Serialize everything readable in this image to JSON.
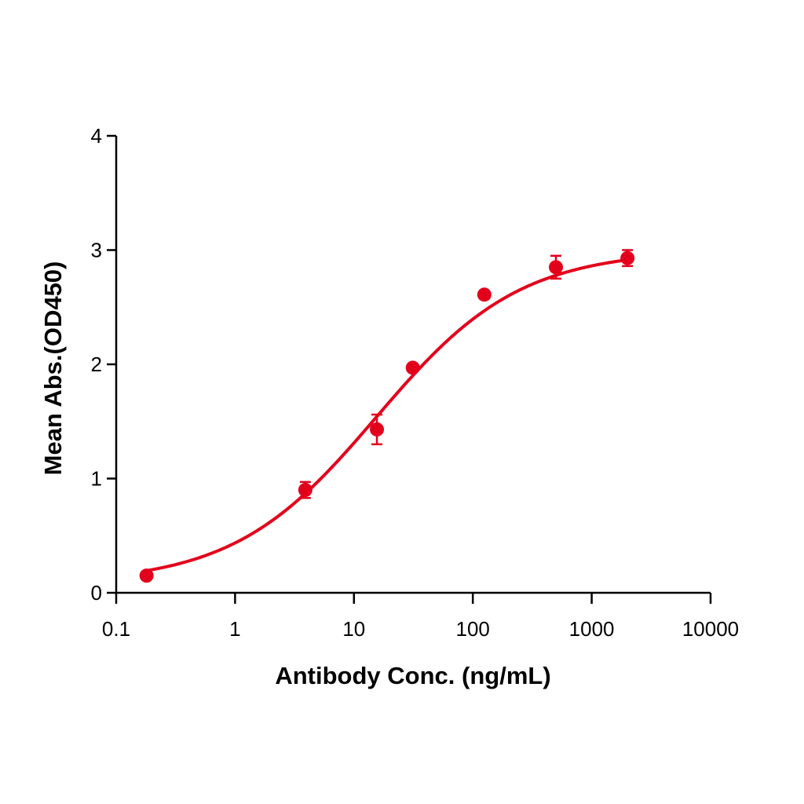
{
  "chart_data": {
    "type": "scatter",
    "subtype": "dose-response (4PL fit on log x-axis)",
    "title": "",
    "xlabel": "Antibody Conc. (ng/mL)",
    "ylabel": "Mean Abs.(OD450)",
    "x_scale": "log",
    "xlim": [
      0.1,
      10000
    ],
    "ylim": [
      0,
      4
    ],
    "x_ticks": [
      "0.1",
      "1",
      "10",
      "100",
      "1000",
      "10000"
    ],
    "y_ticks": [
      "0",
      "1",
      "2",
      "3",
      "4"
    ],
    "grid": false,
    "legend": null,
    "series": [
      {
        "name": "Mean Abs.",
        "color": "#e3001b",
        "x": [
          0.18,
          3.9,
          15.6,
          31.25,
          125,
          500,
          2000
        ],
        "y": [
          0.15,
          0.9,
          1.43,
          1.97,
          2.61,
          2.85,
          2.93
        ],
        "error": [
          0.01,
          0.07,
          0.13,
          0.03,
          0.03,
          0.1,
          0.07
        ]
      }
    ],
    "fit_curve": {
      "color": "#e3001b",
      "model": "4PL",
      "bottom": 0.08,
      "top": 3.0,
      "ec50": 15.5,
      "hill": 0.72
    }
  }
}
